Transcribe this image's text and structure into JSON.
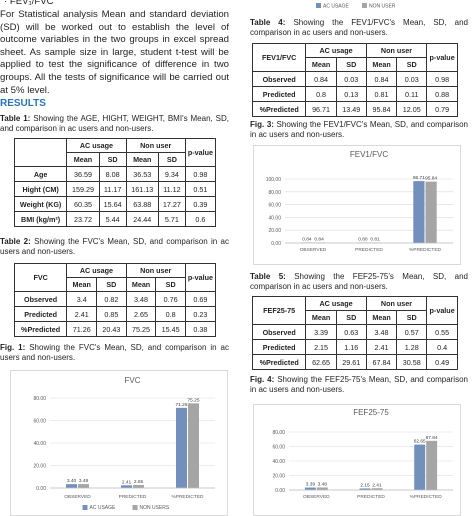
{
  "left_heading": "· FEV₁/FVC",
  "paragraph": "For Statistical analysis Mean and standard deviation (SD) will be worked out to establish the level of outcome variables in the two groups in excel spread sheet. As sample size in large, student t-test will be applied to test the significance of difference in two groups. All the tests of significance will be carried out at 5% level.",
  "results_heading": "RESULTS",
  "top_legend": [
    "AC USAGE",
    "NON USER"
  ],
  "captions": [
    {
      "label": "Table 1:",
      "text": "Showing the AGE, HIGHT, WEIGHT, BMI's Mean, SD, and comparison in ac users and non-users."
    },
    {
      "label": "Table 2:",
      "text": "Showing the FVC's Mean, SD, and comparison in ac users and non-users."
    },
    {
      "label": "Fig. 1:",
      "text": "Showing the FVC's Mean, SD, and comparison in ac users and non-users."
    },
    {
      "label": "Table 4:",
      "text": "Showing the FEV1/FVC's Mean, SD, and comparison in ac users and non-users."
    },
    {
      "label": "Fig. 3:",
      "text": "Showing the FEV1/FVC's Mean, SD, and comparison in ac users and non-users."
    },
    {
      "label": "Table 5:",
      "text": "Showing the FEF25-75's Mean, SD, and comparison in ac users and non-users."
    },
    {
      "label": "Fig. 4:",
      "text": "Showing the FEF25-75's Mean, SD, and comparison in ac users and non-users."
    }
  ],
  "tables": [
    {
      "groups": [
        "AC usage",
        "Non user"
      ],
      "pvalue": "p-value",
      "subheaders": [
        "Mean",
        "SD",
        "Mean",
        "SD"
      ],
      "rows": [
        [
          "Age",
          "36.59",
          "8.08",
          "36.53",
          "9.34",
          "0.98"
        ],
        [
          "Hight (CM)",
          "159.29",
          "11.17",
          "161.13",
          "11.12",
          "0.51"
        ],
        [
          "Weight (KG)",
          "60.35",
          "15.64",
          "63.88",
          "17.27",
          "0.39"
        ],
        [
          "BMI (kg/m²)",
          "23.72",
          "5.44",
          "24.44",
          "5.71",
          "0.6"
        ]
      ]
    },
    {
      "corner": "FVC",
      "groups": [
        "AC usage",
        "Non user"
      ],
      "pvalue": "p-value",
      "subheaders": [
        "Mean",
        "SD",
        "Mean",
        "SD"
      ],
      "rows": [
        [
          "Observed",
          "3.4",
          "0.82",
          "3.48",
          "0.76",
          "0.69"
        ],
        [
          "Predicted",
          "2.41",
          "0.85",
          "2.65",
          "0.8",
          "0.23"
        ],
        [
          "%Predicted",
          "71.26",
          "20.43",
          "75.25",
          "15.45",
          "0.38"
        ]
      ]
    },
    {
      "corner": "FEV1/FVC",
      "groups": [
        "AC usage",
        "Non user"
      ],
      "pvalue": "p-value",
      "subheaders": [
        "Mean",
        "SD",
        "Mean",
        "SD"
      ],
      "rows": [
        [
          "Observed",
          "0.84",
          "0.03",
          "0.84",
          "0.03",
          "0.98"
        ],
        [
          "Predicted",
          "0.8",
          "0.13",
          "0.81",
          "0.11",
          "0.88"
        ],
        [
          "%Predicted",
          "96.71",
          "13.49",
          "95.84",
          "12.05",
          "0.79"
        ]
      ]
    },
    {
      "corner": "FEF25-75",
      "groups": [
        "AC usage",
        "Non user"
      ],
      "pvalue": "p-value",
      "subheaders": [
        "Mean",
        "SD",
        "Mean",
        "SD"
      ],
      "rows": [
        [
          "Observed",
          "3.39",
          "0.63",
          "3.48",
          "0.57",
          "0.55"
        ],
        [
          "Predicted",
          "2.15",
          "1.16",
          "2.41",
          "1.28",
          "0.4"
        ],
        [
          "%Predicted",
          "62.65",
          "29.61",
          "67.84",
          "30.58",
          "0.49"
        ]
      ]
    }
  ],
  "chart_data": [
    {
      "type": "bar",
      "title": "FVC",
      "categories": [
        "OBSERVED",
        "PREDICTED",
        "%PREDICTED"
      ],
      "series": [
        {
          "name": "AC USAGE",
          "color": "#7390bd",
          "values": [
            3.4,
            2.41,
            71.26
          ],
          "value_labels": [
            "3.40",
            "2.41",
            "71.26"
          ]
        },
        {
          "name": "NON USERS",
          "color": "#a5a5a5",
          "values": [
            3.48,
            2.65,
            75.25
          ],
          "value_labels": [
            "3.48",
            "2.65",
            "75.25"
          ]
        }
      ],
      "ylim": [
        0,
        80
      ],
      "yticks": [
        {
          "value": 0,
          "label": "0.00"
        },
        {
          "value": 20,
          "label": "20.00"
        },
        {
          "value": 40,
          "label": "40.00"
        },
        {
          "value": 60,
          "label": "60.00"
        },
        {
          "value": 80,
          "label": "80.00"
        }
      ],
      "grid": true,
      "legend": "bottom"
    },
    {
      "type": "bar",
      "title": "FEV1/FVC",
      "categories": [
        "OBSERVED",
        "PREDICTED",
        "%PREDICTED"
      ],
      "series": [
        {
          "color": "#7390bd",
          "values": [
            0.84,
            0.8,
            96.71
          ],
          "value_labels": [
            "0.84",
            "0.80",
            "96.71"
          ]
        },
        {
          "color": "#a5a5a5",
          "values": [
            0.84,
            0.81,
            95.84
          ],
          "value_labels": [
            "0.84",
            "0.81",
            "95.84"
          ]
        }
      ],
      "ylim": [
        0,
        100
      ],
      "yticks": [
        {
          "value": 0,
          "label": "0.00"
        },
        {
          "value": 20,
          "label": "20.00"
        },
        {
          "value": 40,
          "label": "40.00"
        },
        {
          "value": 60,
          "label": "60.00"
        },
        {
          "value": 80,
          "label": "80.00"
        },
        {
          "value": 100,
          "label": "100.00"
        }
      ],
      "grid": true
    },
    {
      "type": "bar",
      "title": "FEF25-75",
      "categories": [
        "OBSERVED",
        "PREDICTED",
        "%PREDICTED"
      ],
      "series": [
        {
          "color": "#7390bd",
          "values": [
            3.39,
            2.15,
            62.65
          ],
          "value_labels": [
            "3.39",
            "2.15",
            "62.65"
          ]
        },
        {
          "color": "#a5a5a5",
          "values": [
            3.48,
            2.41,
            67.84
          ],
          "value_labels": [
            "3.48",
            "2.41",
            "67.84"
          ]
        }
      ],
      "ylim": [
        0,
        80
      ],
      "yticks": [
        {
          "value": 0,
          "label": "0.00"
        },
        {
          "value": 20,
          "label": "20.00"
        },
        {
          "value": 40,
          "label": "40.00"
        },
        {
          "value": 60,
          "label": "60.00"
        },
        {
          "value": 80,
          "label": "80.00"
        }
      ],
      "grid": true
    }
  ]
}
